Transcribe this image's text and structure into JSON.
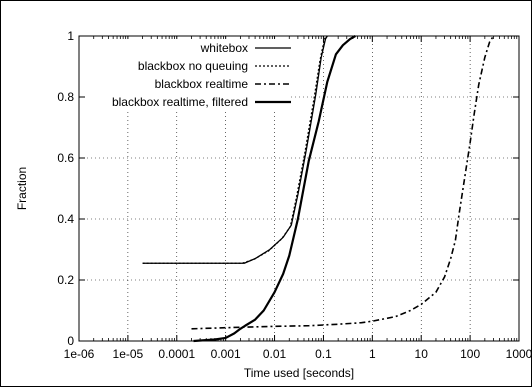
{
  "chart_data": {
    "type": "line",
    "xlabel": "Time used [seconds]",
    "ylabel": "Fraction",
    "xscale": "log",
    "xlim": [
      1e-06,
      1000
    ],
    "ylim": [
      0,
      1
    ],
    "x_tick_labels": [
      "1e-06",
      "1e-05",
      "0.0001",
      "0.001",
      "0.01",
      "0.1",
      "1",
      "10",
      "100",
      "1000"
    ],
    "y_tick_labels": [
      "0",
      "0.2",
      "0.4",
      "0.6",
      "0.8",
      "1"
    ],
    "grid": "dotted",
    "legend_position": "top-left (inside plot)",
    "series": [
      {
        "name": "whitebox",
        "dash": "solid",
        "points": [
          [
            2e-05,
            0.255
          ],
          [
            0.0024,
            0.255
          ],
          [
            0.004,
            0.27
          ],
          [
            0.008,
            0.3
          ],
          [
            0.015,
            0.34
          ],
          [
            0.022,
            0.38
          ],
          [
            0.03,
            0.48
          ],
          [
            0.045,
            0.63
          ],
          [
            0.07,
            0.81
          ],
          [
            0.09,
            0.93
          ],
          [
            0.11,
            0.99
          ],
          [
            0.12,
            1.0
          ]
        ]
      },
      {
        "name": "blackbox no queuing",
        "dash": "dotted",
        "points": [
          [
            2e-05,
            0.255
          ],
          [
            0.0022,
            0.255
          ],
          [
            0.0038,
            0.268
          ],
          [
            0.0075,
            0.295
          ],
          [
            0.014,
            0.335
          ],
          [
            0.021,
            0.375
          ],
          [
            0.028,
            0.47
          ],
          [
            0.042,
            0.62
          ],
          [
            0.065,
            0.8
          ],
          [
            0.085,
            0.92
          ],
          [
            0.105,
            0.99
          ],
          [
            0.115,
            1.0
          ]
        ]
      },
      {
        "name": "blackbox realtime",
        "dash": "dash-dot",
        "points": [
          [
            0.0002,
            0.04
          ],
          [
            0.002,
            0.045
          ],
          [
            0.01,
            0.048
          ],
          [
            0.05,
            0.05
          ],
          [
            0.2,
            0.055
          ],
          [
            0.6,
            0.06
          ],
          [
            1,
            0.065
          ],
          [
            3,
            0.08
          ],
          [
            6,
            0.1
          ],
          [
            10,
            0.12
          ],
          [
            20,
            0.16
          ],
          [
            30,
            0.21
          ],
          [
            40,
            0.27
          ],
          [
            50,
            0.33
          ],
          [
            60,
            0.42
          ],
          [
            80,
            0.55
          ],
          [
            100,
            0.65
          ],
          [
            120,
            0.74
          ],
          [
            150,
            0.84
          ],
          [
            200,
            0.93
          ],
          [
            250,
            0.98
          ],
          [
            300,
            1.0
          ]
        ]
      },
      {
        "name": "blackbox realtime, filtered",
        "dash": "solid-thick",
        "points": [
          [
            0.00022,
            0.0
          ],
          [
            0.0006,
            0.005
          ],
          [
            0.001,
            0.01
          ],
          [
            0.0015,
            0.025
          ],
          [
            0.002,
            0.04
          ],
          [
            0.0025,
            0.05
          ],
          [
            0.004,
            0.07
          ],
          [
            0.006,
            0.1
          ],
          [
            0.01,
            0.16
          ],
          [
            0.015,
            0.22
          ],
          [
            0.02,
            0.28
          ],
          [
            0.03,
            0.4
          ],
          [
            0.05,
            0.59
          ],
          [
            0.08,
            0.72
          ],
          [
            0.12,
            0.85
          ],
          [
            0.18,
            0.94
          ],
          [
            0.25,
            0.97
          ],
          [
            0.35,
            0.99
          ],
          [
            0.45,
            1.0
          ]
        ]
      }
    ]
  }
}
